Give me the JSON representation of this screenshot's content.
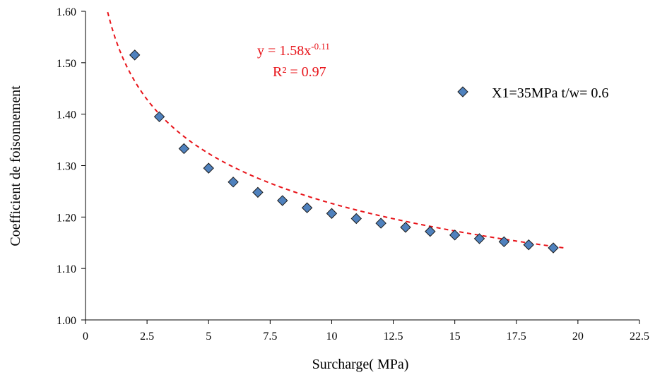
{
  "chart_data": {
    "type": "scatter",
    "xlabel": "Surcharge( MPa)",
    "ylabel": "Coefficient de foisonnement",
    "xlim": [
      0,
      22.5
    ],
    "ylim": [
      1.0,
      1.6
    ],
    "x_ticks": [
      "0",
      "2.5",
      "5",
      "7.5",
      "10",
      "12.5",
      "15",
      "17.5",
      "20",
      "22.5"
    ],
    "y_ticks": [
      "1.00",
      "1.10",
      "1.20",
      "1.30",
      "1.40",
      "1.50",
      "1.60"
    ],
    "grid": false,
    "legend_position": "right",
    "series": [
      {
        "name": "X1=35MPa  t/w= 0.6",
        "marker": "diamond",
        "color": "#4f81bd",
        "x": [
          2,
          3,
          4,
          5,
          6,
          7,
          8,
          9,
          10,
          11,
          12,
          13,
          14,
          15,
          16,
          17,
          18,
          19
        ],
        "y": [
          1.515,
          1.395,
          1.333,
          1.295,
          1.268,
          1.248,
          1.232,
          1.218,
          1.207,
          1.197,
          1.188,
          1.18,
          1.172,
          1.165,
          1.158,
          1.152,
          1.146,
          1.14
        ]
      }
    ],
    "trendline": {
      "type": "power",
      "a": 1.58,
      "b": -0.11,
      "x_range": [
        0.9,
        19.5
      ],
      "color": "#e8141a",
      "style": "dashed",
      "equation": {
        "y_prefix": "y = 1.58x",
        "exponent": "-0.11",
        "r2": "R² = 0.97"
      }
    }
  }
}
